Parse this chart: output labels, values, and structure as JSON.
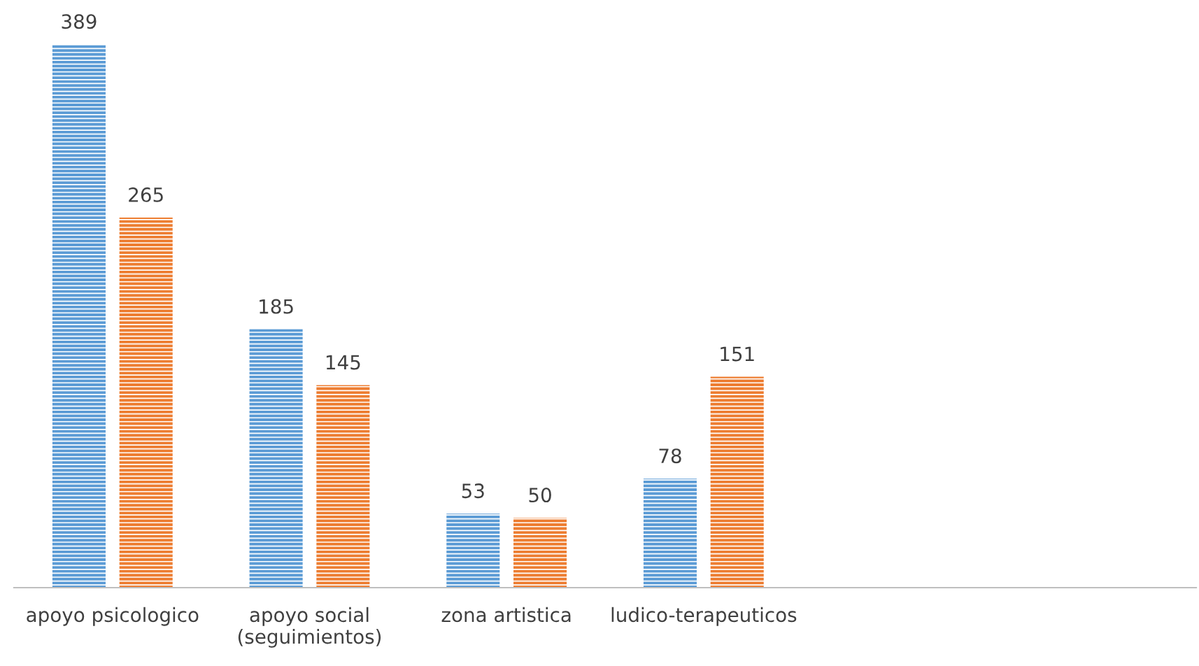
{
  "chart_data": {
    "type": "bar",
    "categories": [
      "apoyo psicologico",
      "apoyo social\n(seguimientos)",
      "zona artistica",
      "ludico-terapeuticos",
      null,
      null
    ],
    "series": [
      {
        "color": "#5b9bd5",
        "values": [
          389,
          185,
          53,
          78,
          null,
          null
        ]
      },
      {
        "color": "#ed7d31",
        "values": [
          265,
          145,
          50,
          151,
          null,
          null
        ]
      }
    ],
    "data_labels": true,
    "grid": false,
    "legend": false,
    "tick_labels": "x"
  }
}
